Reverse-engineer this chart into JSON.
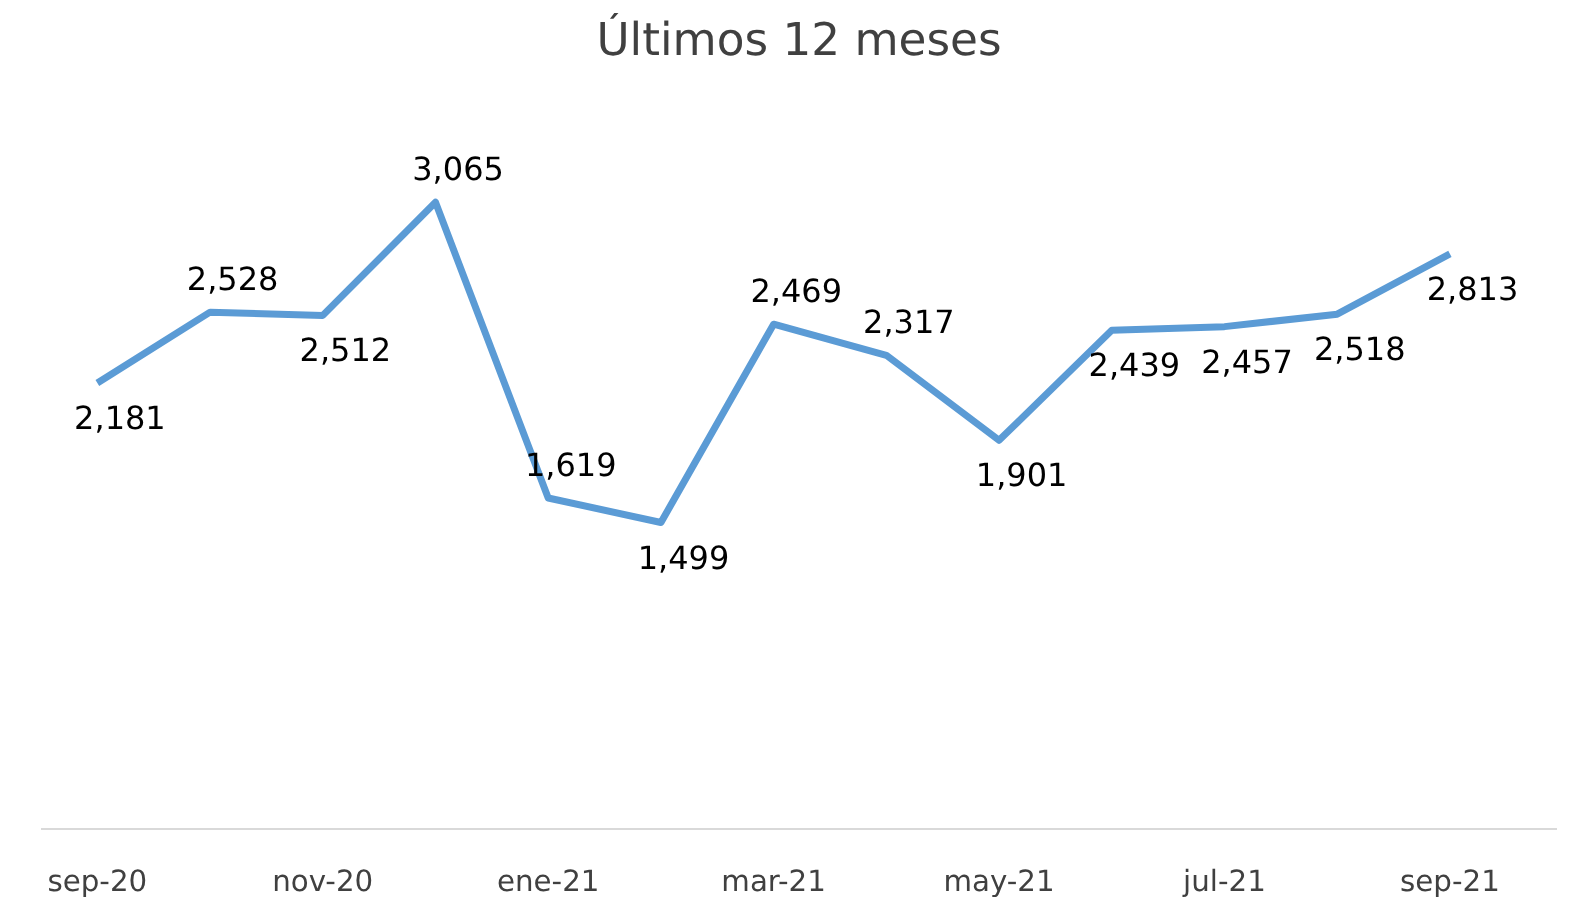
{
  "chart_data": {
    "type": "line",
    "title": "Últimos 12 meses",
    "categories": [
      "sep-20",
      null,
      "nov-20",
      null,
      "ene-21",
      null,
      "mar-21",
      null,
      "may-21",
      null,
      "jul-21",
      null,
      "sep-21"
    ],
    "series": [
      {
        "color": "#5b9bd5",
        "values": [
          2181,
          2528,
          2512,
          3065,
          1619,
          1499,
          2469,
          2317,
          1901,
          2439,
          2457,
          2518,
          2813
        ],
        "value_labels": [
          "2,181",
          "2,528",
          "2,512",
          "3,065",
          "1,619",
          "1,499",
          "2,469",
          "2,317",
          "1,901",
          "2,439",
          "2,457",
          "2,518",
          "2,813"
        ]
      }
    ],
    "grid": false,
    "marker": "none",
    "line_style": "solid"
  }
}
